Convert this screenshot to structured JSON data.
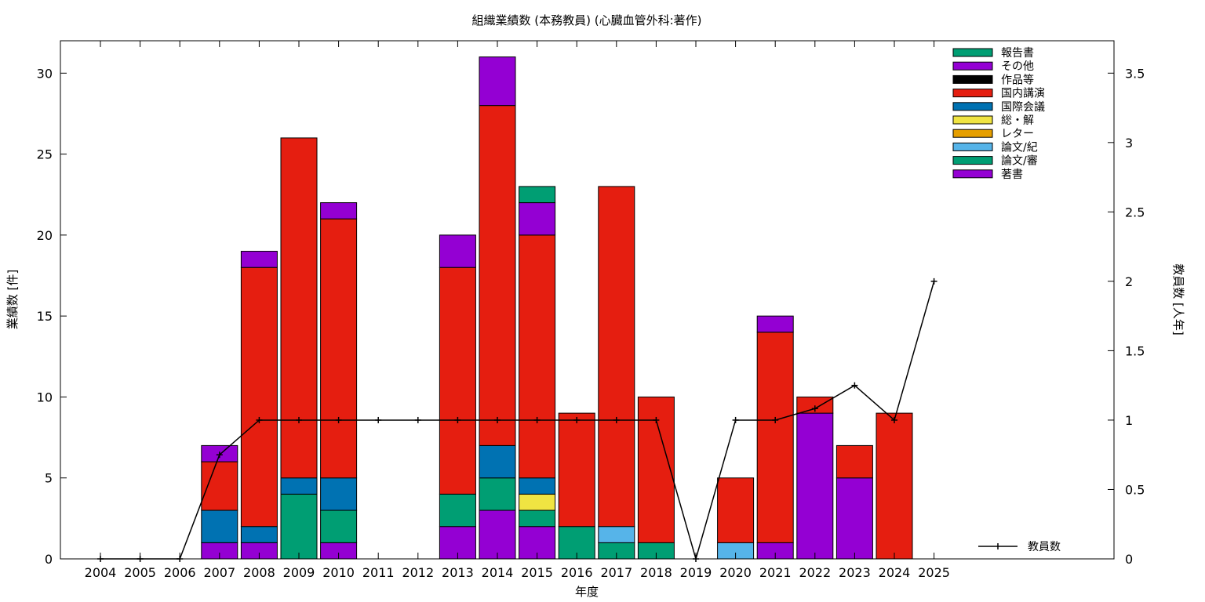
{
  "chart_data": {
    "type": "bar",
    "title": "組織業績数 (本務教員) (心臓血管外科:著作)",
    "xlabel": "年度",
    "ylabel": "業績数 [件]",
    "y2label": "教員数 [人年]",
    "ylim": [
      0,
      32
    ],
    "y2lim": [
      0,
      3.7333
    ],
    "yticks": [
      "0",
      "5",
      "10",
      "15",
      "20",
      "25",
      "30"
    ],
    "y2ticks": [
      "0",
      "0.5",
      "1",
      "1.5",
      "2",
      "2.5",
      "3",
      "3.5"
    ],
    "categories": [
      "2004",
      "2005",
      "2006",
      "2007",
      "2008",
      "2009",
      "2010",
      "2011",
      "2012",
      "2013",
      "2014",
      "2015",
      "2016",
      "2017",
      "2018",
      "2019",
      "2020",
      "2021",
      "2022",
      "2023",
      "2024",
      "2025"
    ],
    "stacked": true,
    "legend_position": "top-right",
    "series": [
      {
        "name": "著書",
        "color": "#9400d3",
        "values": [
          0,
          0,
          0,
          1,
          1,
          0,
          1,
          0,
          0,
          2,
          3,
          2,
          0,
          0,
          0,
          0,
          0,
          1,
          9,
          5,
          0,
          0
        ]
      },
      {
        "name": "論文/審",
        "color": "#009e73",
        "values": [
          0,
          0,
          0,
          0,
          0,
          4,
          2,
          0,
          0,
          2,
          2,
          1,
          2,
          1,
          1,
          0,
          0,
          0,
          0,
          0,
          0,
          0
        ]
      },
      {
        "name": "論文/紀",
        "color": "#56b4e9",
        "values": [
          0,
          0,
          0,
          0,
          0,
          0,
          0,
          0,
          0,
          0,
          0,
          0,
          0,
          1,
          0,
          0,
          1,
          0,
          0,
          0,
          0,
          0
        ]
      },
      {
        "name": "レター",
        "color": "#e69f00",
        "values": [
          0,
          0,
          0,
          0,
          0,
          0,
          0,
          0,
          0,
          0,
          0,
          0,
          0,
          0,
          0,
          0,
          0,
          0,
          0,
          0,
          0,
          0
        ]
      },
      {
        "name": "総・解",
        "color": "#f0e442",
        "values": [
          0,
          0,
          0,
          0,
          0,
          0,
          0,
          0,
          0,
          0,
          0,
          1,
          0,
          0,
          0,
          0,
          0,
          0,
          0,
          0,
          0,
          0
        ]
      },
      {
        "name": "国際会議",
        "color": "#0072b2",
        "values": [
          0,
          0,
          0,
          2,
          1,
          1,
          2,
          0,
          0,
          0,
          2,
          1,
          0,
          0,
          0,
          0,
          0,
          0,
          0,
          0,
          0,
          0
        ]
      },
      {
        "name": "国内講演",
        "color": "#e51e10",
        "values": [
          0,
          0,
          0,
          3,
          16,
          21,
          16,
          0,
          0,
          14,
          21,
          15,
          7,
          21,
          9,
          0,
          4,
          13,
          1,
          2,
          9,
          0
        ]
      },
      {
        "name": "作品等",
        "color": "#000000",
        "values": [
          0,
          0,
          0,
          0,
          0,
          0,
          0,
          0,
          0,
          0,
          0,
          0,
          0,
          0,
          0,
          0,
          0,
          0,
          0,
          0,
          0,
          0
        ]
      },
      {
        "name": "その他",
        "color": "#9400d3",
        "values": [
          0,
          0,
          0,
          1,
          1,
          0,
          1,
          0,
          0,
          2,
          3,
          2,
          0,
          0,
          0,
          0,
          0,
          1,
          0,
          0,
          0,
          0
        ]
      },
      {
        "name": "報告書",
        "color": "#009e73",
        "values": [
          0,
          0,
          0,
          0,
          0,
          0,
          0,
          0,
          0,
          0,
          0,
          1,
          0,
          0,
          0,
          0,
          0,
          0,
          0,
          0,
          0,
          0
        ]
      }
    ],
    "line_series": {
      "name": "教員数",
      "axis": "y2",
      "color": "#000000",
      "values": [
        0,
        0,
        0,
        0.75,
        1,
        1,
        1,
        1,
        1,
        1,
        1,
        1,
        1,
        1,
        1,
        0,
        1,
        1,
        1.083,
        1.25,
        1,
        2
      ]
    }
  }
}
